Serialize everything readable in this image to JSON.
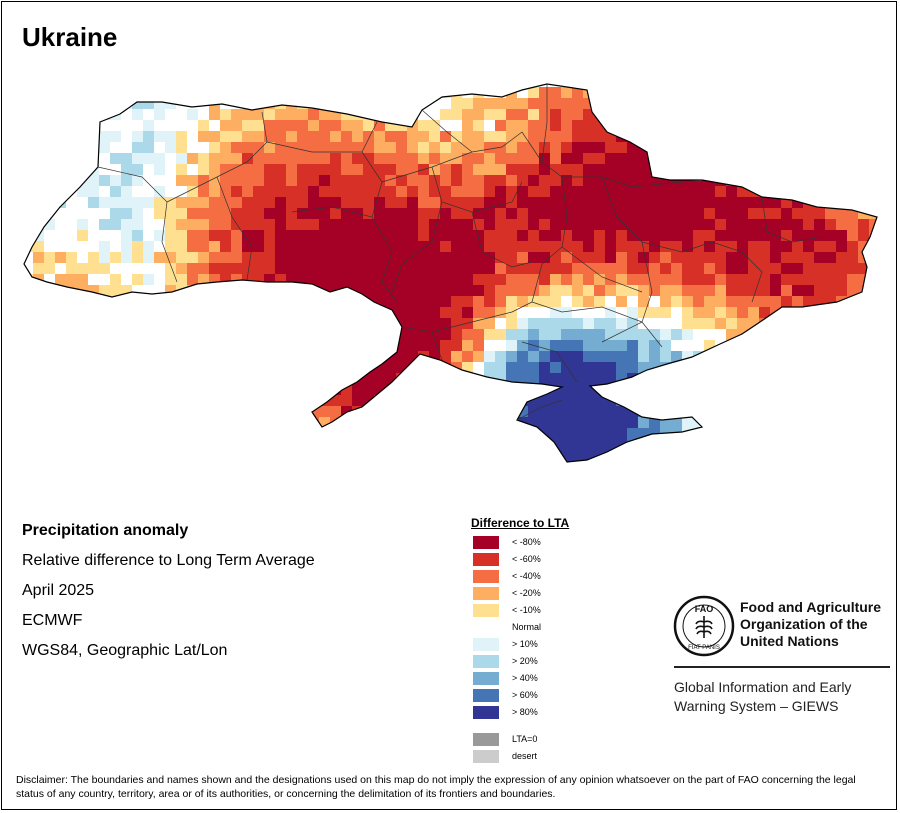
{
  "title": "Ukraine",
  "info": {
    "heading": "Precipitation anomaly",
    "subtitle": "Relative difference to Long Term Average",
    "period": "April 2025",
    "source": "ECMWF",
    "projection": "WGS84, Geographic Lat/Lon"
  },
  "legend": {
    "title": "Difference to LTA",
    "items": [
      {
        "label": "< -80%",
        "color": "#a50026"
      },
      {
        "label": "< -60%",
        "color": "#d73027"
      },
      {
        "label": "< -40%",
        "color": "#f46d43"
      },
      {
        "label": "< -20%",
        "color": "#fdae61"
      },
      {
        "label": "< -10%",
        "color": "#fee090"
      },
      {
        "label": "Normal",
        "color": "#ffffff"
      },
      {
        "label": "> 10%",
        "color": "#e0f3f8"
      },
      {
        "label": "> 20%",
        "color": "#abd9e9"
      },
      {
        "label": "> 40%",
        "color": "#74add1"
      },
      {
        "label": "> 60%",
        "color": "#4575b4"
      },
      {
        "label": "> 80%",
        "color": "#313695"
      }
    ],
    "extra": [
      {
        "label": "LTA=0",
        "color": "#999999"
      },
      {
        "label": "desert",
        "color": "#cccccc"
      }
    ]
  },
  "fao": {
    "name": "Food and Agriculture Organization of the United Nations",
    "logo_letters": "FAO",
    "logo_ring": "FIAT PANIS",
    "system": "Global Information and Early Warning System – GIEWS"
  },
  "disclaimer": "Disclaimer: The boundaries and names shown and the designations used on this map do not imply the expression of any opinion whatsoever on the part of FAO concerning the legal status of any country, territory, area or of its authorities, or concerning the delimitation of its frontiers and boundaries."
}
